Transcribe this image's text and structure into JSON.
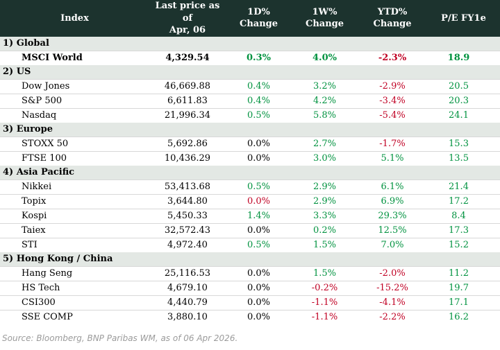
{
  "colors": {
    "green": "#00923f",
    "red": "#c00023",
    "black": "#000000",
    "header_bg": "#1c332e",
    "header_text": "#ffffff",
    "section_bg": "#e3e8e4",
    "row_separator": "#d8d8d8",
    "source_text": "#9b9b9b"
  },
  "chart_data": {
    "type": "table",
    "title": "",
    "columns": [
      "Index",
      "Last price as of\nApr, 06",
      "1D% Change",
      "1W% Change",
      "YTD% Change",
      "P/E FY1e"
    ],
    "sections": [
      {
        "label": "1) Global",
        "rows": [
          {
            "name": "MSCI World",
            "bold": true,
            "price": "4,329.54",
            "chg_1d": [
              "0.3%",
              "green"
            ],
            "chg_1w": [
              "4.0%",
              "green"
            ],
            "chg_ytd": [
              "-2.3%",
              "red"
            ],
            "pe": [
              "18.9",
              "green"
            ]
          }
        ]
      },
      {
        "label": "2) US",
        "rows": [
          {
            "name": "Dow Jones",
            "bold": false,
            "price": "46,669.88",
            "chg_1d": [
              "0.4%",
              "green"
            ],
            "chg_1w": [
              "3.2%",
              "green"
            ],
            "chg_ytd": [
              "-2.9%",
              "red"
            ],
            "pe": [
              "20.5",
              "green"
            ]
          },
          {
            "name": "S&P 500",
            "bold": false,
            "price": "6,611.83",
            "chg_1d": [
              "0.4%",
              "green"
            ],
            "chg_1w": [
              "4.2%",
              "green"
            ],
            "chg_ytd": [
              "-3.4%",
              "red"
            ],
            "pe": [
              "20.3",
              "green"
            ]
          },
          {
            "name": "Nasdaq",
            "bold": false,
            "price": "21,996.34",
            "chg_1d": [
              "0.5%",
              "green"
            ],
            "chg_1w": [
              "5.8%",
              "green"
            ],
            "chg_ytd": [
              "-5.4%",
              "red"
            ],
            "pe": [
              "24.1",
              "green"
            ]
          }
        ]
      },
      {
        "label": "3) Europe",
        "rows": [
          {
            "name": "STOXX 50",
            "bold": false,
            "price": "5,692.86",
            "chg_1d": [
              "0.0%",
              "black"
            ],
            "chg_1w": [
              "2.7%",
              "green"
            ],
            "chg_ytd": [
              "-1.7%",
              "red"
            ],
            "pe": [
              "15.3",
              "green"
            ]
          },
          {
            "name": "FTSE 100",
            "bold": false,
            "price": "10,436.29",
            "chg_1d": [
              "0.0%",
              "black"
            ],
            "chg_1w": [
              "3.0%",
              "green"
            ],
            "chg_ytd": [
              "5.1%",
              "green"
            ],
            "pe": [
              "13.5",
              "green"
            ]
          }
        ]
      },
      {
        "label": "4) Asia Pacific",
        "rows": [
          {
            "name": "Nikkei",
            "bold": false,
            "price": "53,413.68",
            "chg_1d": [
              "0.5%",
              "green"
            ],
            "chg_1w": [
              "2.9%",
              "green"
            ],
            "chg_ytd": [
              "6.1%",
              "green"
            ],
            "pe": [
              "21.4",
              "green"
            ]
          },
          {
            "name": "Topix",
            "bold": false,
            "price": "3,644.80",
            "chg_1d": [
              "0.0%",
              "red"
            ],
            "chg_1w": [
              "2.9%",
              "green"
            ],
            "chg_ytd": [
              "6.9%",
              "green"
            ],
            "pe": [
              "17.2",
              "green"
            ]
          },
          {
            "name": "Kospi",
            "bold": false,
            "price": "5,450.33",
            "chg_1d": [
              "1.4%",
              "green"
            ],
            "chg_1w": [
              "3.3%",
              "green"
            ],
            "chg_ytd": [
              "29.3%",
              "green"
            ],
            "pe": [
              "8.4",
              "green"
            ]
          },
          {
            "name": "Taiex",
            "bold": false,
            "price": "32,572.43",
            "chg_1d": [
              "0.0%",
              "black"
            ],
            "chg_1w": [
              "0.2%",
              "green"
            ],
            "chg_ytd": [
              "12.5%",
              "green"
            ],
            "pe": [
              "17.3",
              "green"
            ]
          },
          {
            "name": "STI",
            "bold": false,
            "price": "4,972.40",
            "chg_1d": [
              "0.5%",
              "green"
            ],
            "chg_1w": [
              "1.5%",
              "green"
            ],
            "chg_ytd": [
              "7.0%",
              "green"
            ],
            "pe": [
              "15.2",
              "green"
            ]
          }
        ]
      },
      {
        "label": "5) Hong Kong / China",
        "rows": [
          {
            "name": "Hang Seng",
            "bold": false,
            "price": "25,116.53",
            "chg_1d": [
              "0.0%",
              "black"
            ],
            "chg_1w": [
              "1.5%",
              "green"
            ],
            "chg_ytd": [
              "-2.0%",
              "red"
            ],
            "pe": [
              "11.2",
              "green"
            ]
          },
          {
            "name": "HS Tech",
            "bold": false,
            "price": "4,679.10",
            "chg_1d": [
              "0.0%",
              "black"
            ],
            "chg_1w": [
              "-0.2%",
              "red"
            ],
            "chg_ytd": [
              "-15.2%",
              "red"
            ],
            "pe": [
              "19.7",
              "green"
            ]
          },
          {
            "name": "CSI300",
            "bold": false,
            "price": "4,440.79",
            "chg_1d": [
              "0.0%",
              "black"
            ],
            "chg_1w": [
              "-1.1%",
              "red"
            ],
            "chg_ytd": [
              "-4.1%",
              "red"
            ],
            "pe": [
              "17.1",
              "green"
            ]
          },
          {
            "name": "SSE COMP",
            "bold": false,
            "price": "3,880.10",
            "chg_1d": [
              "0.0%",
              "black"
            ],
            "chg_1w": [
              "-1.1%",
              "red"
            ],
            "chg_ytd": [
              "-2.2%",
              "red"
            ],
            "pe": [
              "16.2",
              "green"
            ]
          }
        ]
      }
    ]
  },
  "footer": {
    "source": "Source: Bloomberg, BNP Paribas WM, as of 06 Apr 2026."
  }
}
